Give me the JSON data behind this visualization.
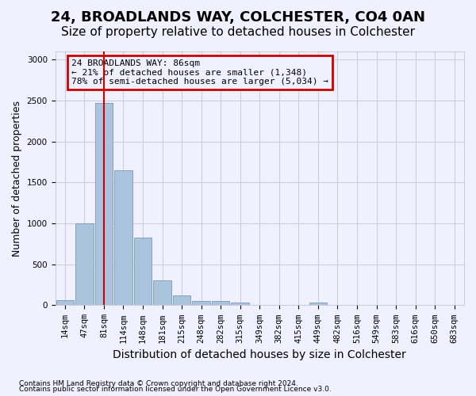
{
  "title": "24, BROADLANDS WAY, COLCHESTER, CO4 0AN",
  "subtitle": "Size of property relative to detached houses in Colchester",
  "xlabel": "Distribution of detached houses by size in Colchester",
  "ylabel": "Number of detached properties",
  "footnote1": "Contains HM Land Registry data © Crown copyright and database right 2024.",
  "footnote2": "Contains public sector information licensed under the Open Government Licence v3.0.",
  "bins": [
    "14sqm",
    "47sqm",
    "81sqm",
    "114sqm",
    "148sqm",
    "181sqm",
    "215sqm",
    "248sqm",
    "282sqm",
    "315sqm",
    "349sqm",
    "382sqm",
    "415sqm",
    "449sqm",
    "482sqm",
    "516sqm",
    "549sqm",
    "583sqm",
    "616sqm",
    "650sqm",
    "683sqm"
  ],
  "values": [
    60,
    1000,
    2470,
    1650,
    830,
    300,
    125,
    50,
    50,
    30,
    0,
    0,
    0,
    30,
    0,
    0,
    0,
    0,
    0,
    0,
    0
  ],
  "bar_color": "#aac4de",
  "bar_edge_color": "#7799bb",
  "highlight_line_color": "#cc0000",
  "highlight_bin_index": 2,
  "annotation_text": "24 BROADLANDS WAY: 86sqm\n← 21% of detached houses are smaller (1,348)\n78% of semi-detached houses are larger (5,034) →",
  "annotation_box_color": "#cc0000",
  "ylim": [
    0,
    3100
  ],
  "yticks": [
    0,
    500,
    1000,
    1500,
    2000,
    2500,
    3000
  ],
  "background_color": "#f0f0ff",
  "grid_color": "#ccccdd",
  "title_fontsize": 13,
  "subtitle_fontsize": 11,
  "axis_label_fontsize": 9,
  "tick_fontsize": 7.5
}
